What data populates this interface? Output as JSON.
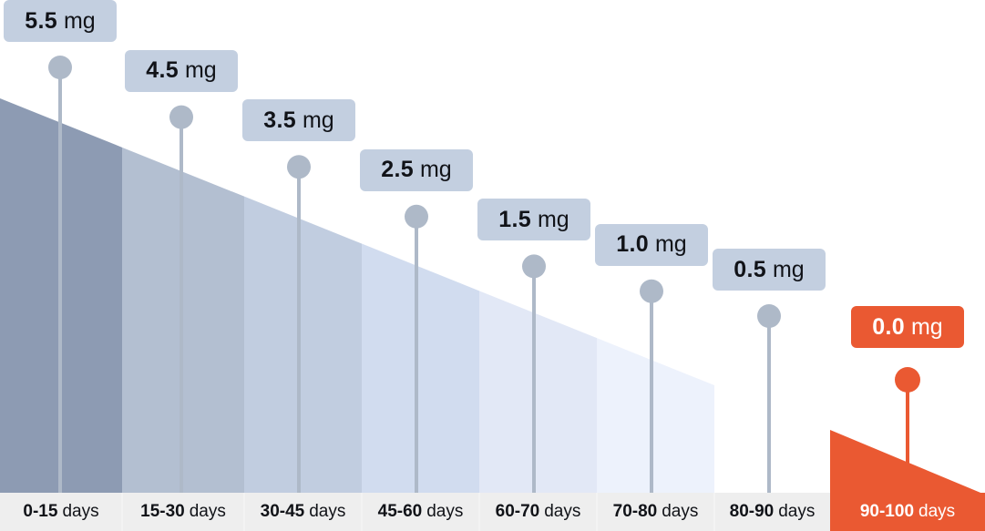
{
  "chart_data": {
    "type": "bar",
    "categories": [
      "0-15",
      "15-30",
      "30-45",
      "45-60",
      "60-70",
      "70-80",
      "80-90",
      "90-100"
    ],
    "category_unit": "days",
    "values": [
      5.5,
      4.5,
      3.5,
      2.5,
      1.5,
      1.0,
      0.5,
      0.0
    ],
    "value_labels": [
      "5.5",
      "4.5",
      "3.5",
      "2.5",
      "1.5",
      "1.0",
      "0.5",
      "0.0"
    ],
    "value_unit": "mg",
    "ylim": [
      0,
      5.5
    ],
    "grid": false,
    "legend": "none"
  },
  "colors": {
    "band_fills": [
      "#8d9bb3",
      "#b3bfd1",
      "#c1cde0",
      "#d1dcef",
      "#e2e8f6",
      "#edf2fc",
      "#ffffff",
      "#ea5932"
    ],
    "label_fill": "#c3cfe0",
    "marker": "#aeb9c8",
    "highlight": "#ea5932",
    "axis_band": "#eeeeee",
    "axis_band_highlight": "#ffffff",
    "text": "#111318",
    "text_on_highlight": "#ffffff"
  }
}
